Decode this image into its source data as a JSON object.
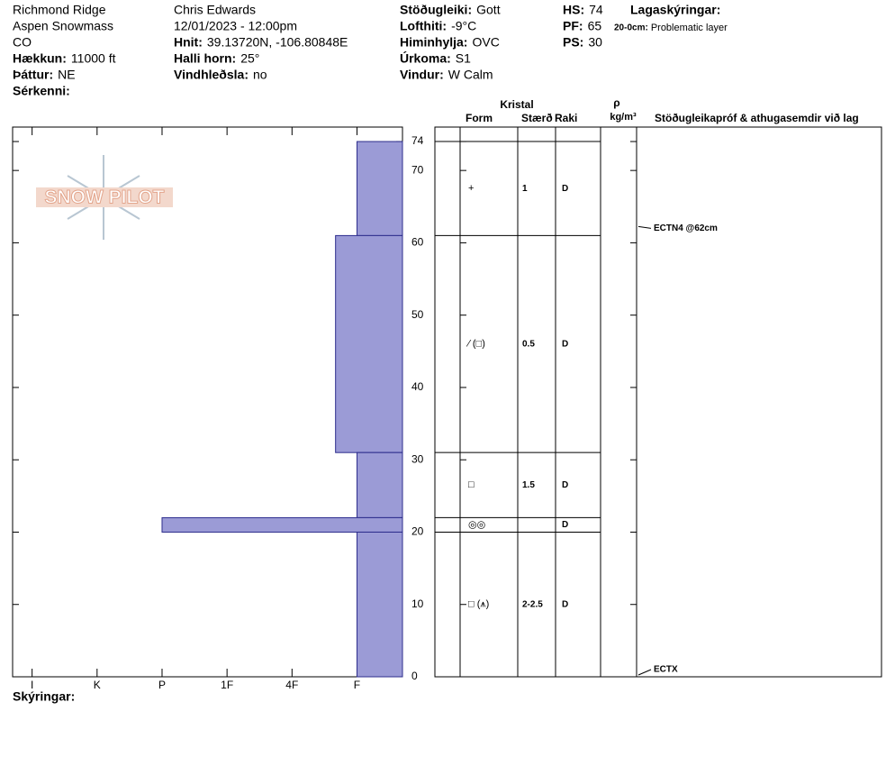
{
  "header": {
    "columns": [
      [
        "Richmond Ridge",
        "Aspen Snowmass",
        "CO",
        {
          "label": "Hækkun:",
          "value": "11000 ft"
        },
        {
          "label": "Þáttur:",
          "value": "NE"
        },
        {
          "label": "Sérkenni:"
        }
      ],
      [
        "Chris Edwards",
        "12/01/2023 - 12:00pm",
        {
          "label": "Hnit:",
          "value": "39.13720N, -106.80848E"
        },
        {
          "label": "Halli horn:",
          "value": "25°"
        },
        {
          "label": "Vindhleðsla:",
          "value": "no"
        }
      ],
      [
        {
          "label": "Stöðugleiki:",
          "value": "Gott"
        },
        {
          "label": "Lofthiti:",
          "value": "-9°C"
        },
        {
          "label": "Himinhylja:",
          "value": "OVC"
        },
        {
          "label": "Úrkoma:",
          "value": "S1"
        },
        {
          "label": "Vindur:",
          "value": "W Calm"
        }
      ],
      [
        {
          "label": "HS:",
          "value": "74"
        },
        {
          "label": "PF:",
          "value": "65"
        },
        {
          "label": "PS:",
          "value": "30"
        }
      ]
    ],
    "legend_title": "Lagaskýringar:",
    "legend_items": [
      {
        "label": "20-0cm:",
        "value": "Problematic layer"
      }
    ],
    "logo": "SNOW PILOT",
    "footer": "Skýringar:"
  },
  "chart_data": {
    "type": "bar",
    "xlim": [
      0.3,
      6.3
    ],
    "x_reversed": true,
    "xticks": [
      {
        "value": 6,
        "label": "I"
      },
      {
        "value": 5,
        "label": "K"
      },
      {
        "value": 4,
        "label": "P"
      },
      {
        "value": 3,
        "label": "1F"
      },
      {
        "value": 2,
        "label": "4F"
      },
      {
        "value": 1,
        "label": "F"
      }
    ],
    "ylim": [
      0,
      76
    ],
    "yticks": [
      0,
      10,
      20,
      30,
      40,
      50,
      60,
      70,
      74
    ],
    "color": "#9b9bd6",
    "table_headers": {
      "crystal": "Kristal",
      "form": "Form",
      "size": "Stærð",
      "moisture": "Raki",
      "density": "ρ",
      "density_unit": "kg/m³",
      "tests": "Stöðugleikapróf & athugasemdir við lag"
    },
    "layers": [
      {
        "top": 74,
        "bottom": 61,
        "hardness": 1,
        "grain": "+",
        "size": "1",
        "moisture": "D"
      },
      {
        "top": 61,
        "bottom": 31,
        "hardness": 1.33,
        "grain": "⁄ (□)",
        "size": "0.5",
        "moisture": "D"
      },
      {
        "top": 31,
        "bottom": 22,
        "hardness": 1,
        "grain": "□",
        "size": "1.5",
        "moisture": "D"
      },
      {
        "top": 22,
        "bottom": 20,
        "hardness": 4,
        "grain": "◎◎",
        "moisture": "D"
      },
      {
        "top": 20,
        "bottom": 0,
        "hardness": 1,
        "grain": "□ (⩚)",
        "size": "2-2.5",
        "moisture": "D"
      }
    ],
    "tests": [
      {
        "label": "ECTN4 @62cm",
        "height": 62
      },
      {
        "label": "ECTX",
        "height": 0
      }
    ]
  }
}
